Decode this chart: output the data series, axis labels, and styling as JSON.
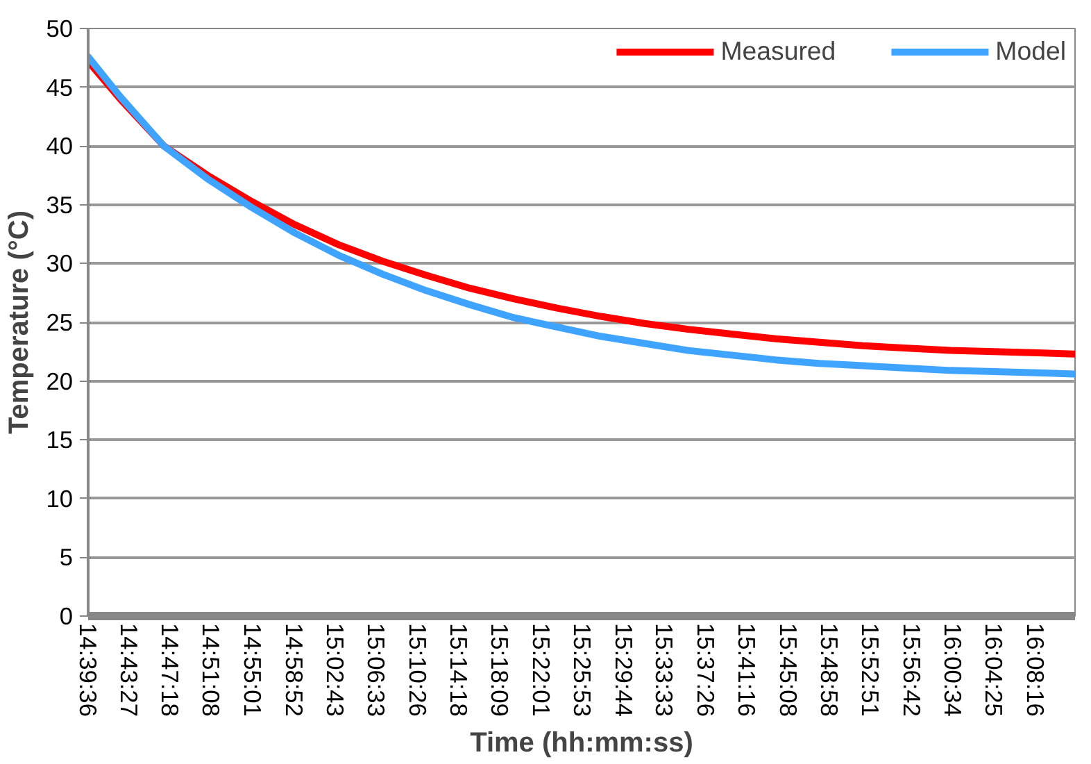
{
  "chart_data": {
    "type": "line",
    "xlabel": "Time (hh:mm:ss)",
    "ylabel": "Temperature (°C)",
    "x": [
      14.66,
      14.71,
      14.7782,
      14.8464,
      14.9145,
      14.9827,
      15.0509,
      15.1191,
      15.1873,
      15.2555,
      15.3236,
      15.3918,
      15.46,
      15.5282,
      15.5964,
      15.6645,
      15.7327,
      15.8009,
      15.8691,
      15.9373,
      16.0055,
      16.0736,
      16.1418,
      16.1986
    ],
    "series": [
      {
        "name": "Measured",
        "color": "#ff0000",
        "values": [
          47.2,
          44.0,
          40.0,
          37.5,
          35.3,
          33.3,
          31.6,
          30.2,
          29.0,
          27.9,
          27.0,
          26.2,
          25.5,
          24.9,
          24.4,
          24.0,
          23.6,
          23.3,
          23.0,
          22.8,
          22.6,
          22.5,
          22.4,
          22.3
        ]
      },
      {
        "name": "Model",
        "color": "#3fa4ff",
        "values": [
          47.6,
          44.2,
          40.0,
          37.2,
          34.8,
          32.6,
          30.7,
          29.1,
          27.7,
          26.5,
          25.4,
          24.6,
          23.8,
          23.2,
          22.6,
          22.2,
          21.8,
          21.5,
          21.3,
          21.1,
          20.9,
          20.8,
          20.7,
          20.6
        ]
      }
    ],
    "xlim": [
      14.66,
      16.2
    ],
    "xticks": [
      {
        "value": 14.66,
        "label": "14:39:36"
      },
      {
        "value": 14.724167,
        "label": "14:43:27"
      },
      {
        "value": 14.788333,
        "label": "14:47:18"
      },
      {
        "value": 14.852222,
        "label": "14:51:08"
      },
      {
        "value": 14.916944,
        "label": "14:55:01"
      },
      {
        "value": 14.981111,
        "label": "14:58:52"
      },
      {
        "value": 15.045278,
        "label": "15:02:43"
      },
      {
        "value": 15.109167,
        "label": "15:06:33"
      },
      {
        "value": 15.173889,
        "label": "15:10:26"
      },
      {
        "value": 15.238333,
        "label": "15:14:18"
      },
      {
        "value": 15.3025,
        "label": "15:18:09"
      },
      {
        "value": 15.366944,
        "label": "15:22:01"
      },
      {
        "value": 15.431389,
        "label": "15:25:53"
      },
      {
        "value": 15.495556,
        "label": "15:29:44"
      },
      {
        "value": 15.559167,
        "label": "15:33:33"
      },
      {
        "value": 15.623889,
        "label": "15:37:26"
      },
      {
        "value": 15.687778,
        "label": "15:41:16"
      },
      {
        "value": 15.752222,
        "label": "15:45:08"
      },
      {
        "value": 15.816111,
        "label": "15:48:58"
      },
      {
        "value": 15.880833,
        "label": "15:52:51"
      },
      {
        "value": 15.945,
        "label": "15:56:42"
      },
      {
        "value": 16.009444,
        "label": "16:00:34"
      },
      {
        "value": 16.073611,
        "label": "16:04:25"
      },
      {
        "value": 16.137778,
        "label": "16:08:16"
      }
    ],
    "ylim": [
      0,
      50
    ],
    "yticks": [
      0,
      5,
      10,
      15,
      20,
      25,
      30,
      35,
      40,
      45,
      50
    ],
    "grid": "y",
    "legend": "top right",
    "marker": "none",
    "line_style": "solid"
  }
}
